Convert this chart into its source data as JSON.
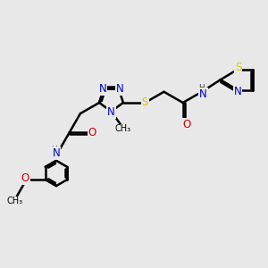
{
  "bg_color": "#e8e8e8",
  "bond_color": "#000000",
  "bond_width": 1.8,
  "atom_colors": {
    "N": "#0000cc",
    "S": "#cccc00",
    "O": "#cc0000",
    "C": "#000000",
    "H": "#404040"
  },
  "font_size": 8.5,
  "fig_size": [
    3.0,
    3.0
  ],
  "dpi": 100
}
